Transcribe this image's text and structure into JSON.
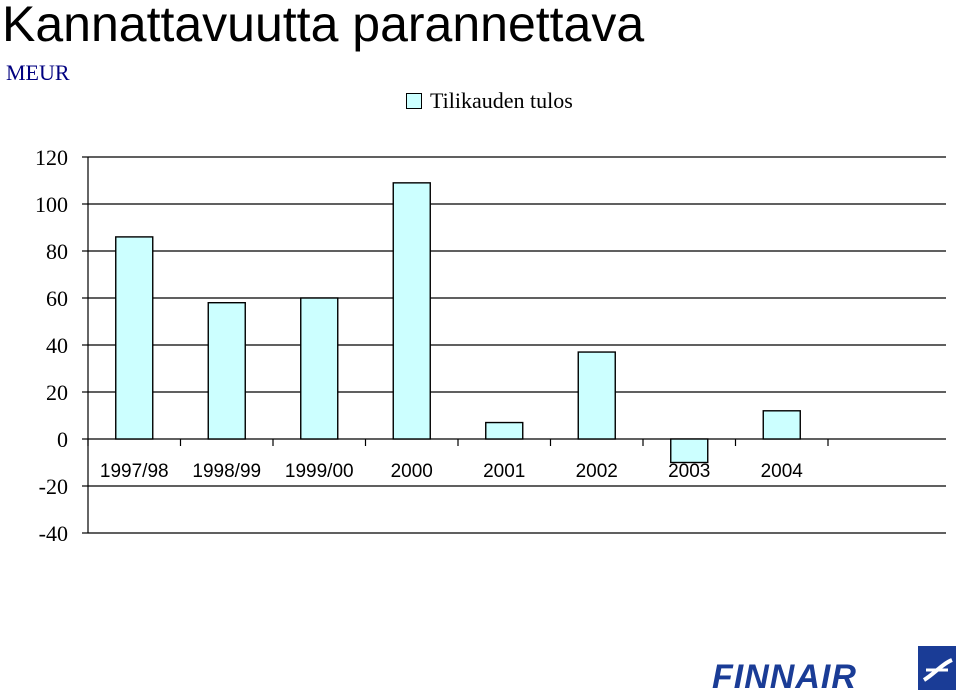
{
  "slide": {
    "title": "Kannattavuutta parannettava",
    "unit": "MEUR"
  },
  "logo": {
    "text": "FINNAIR",
    "color": "#1a3c96"
  },
  "colors": {
    "bar_fill": "#ccffff",
    "bar_stroke": "#000000",
    "grid": "#000000"
  },
  "chart_data": {
    "type": "bar",
    "categories": [
      "1997/98",
      "1998/99",
      "1999/00",
      "2000",
      "2001",
      "2002",
      "2003",
      "2004"
    ],
    "series": [
      {
        "name": "Tilikauden tulos",
        "values": [
          86,
          58,
          60,
          109,
          7,
          37,
          -10,
          12
        ]
      }
    ],
    "ylim": [
      -40,
      120
    ],
    "yticks": [
      -40,
      -20,
      0,
      20,
      40,
      60,
      80,
      100,
      120
    ],
    "grid": true,
    "legend": "top"
  }
}
